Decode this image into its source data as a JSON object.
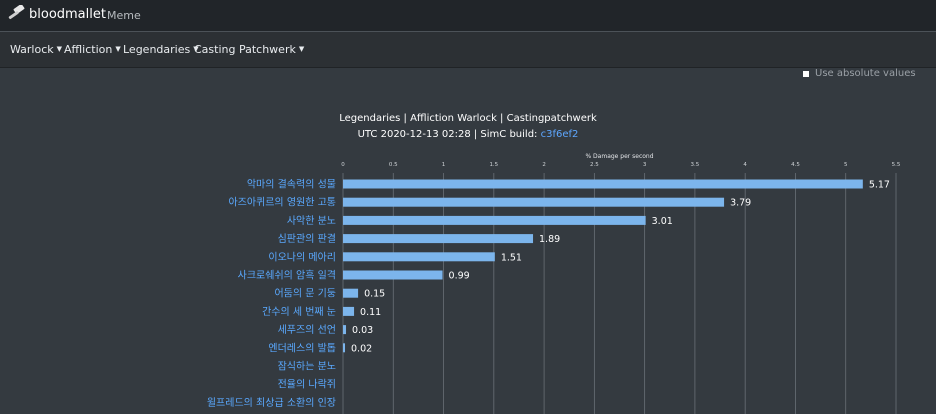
{
  "header": {
    "brand": "bloodmallet",
    "meme_link": "Meme",
    "logo_icon": "gavel-icon"
  },
  "nav": {
    "items": [
      {
        "label": "Warlock"
      },
      {
        "label": "Affliction"
      },
      {
        "label": "Legendaries"
      },
      {
        "label": "Casting Patchwerk"
      }
    ]
  },
  "controls": {
    "absolute_values_label": "Use absolute values",
    "absolute_values_checked": false
  },
  "chart_title": {
    "line1": "Legendaries | Affliction Warlock | Castingpatchwerk",
    "line2_prefix": "UTC 2020-12-13 02:28 | SimC build: ",
    "build_hash": "c3f6ef2"
  },
  "colors": {
    "bar": "#7cb5ec",
    "category_label": "#5aa9ff",
    "background": "#343a40",
    "link": "#5ea7ff"
  },
  "chart_data": {
    "type": "bar",
    "orientation": "horizontal",
    "xlabel": "% Damage per second",
    "xlim": [
      0,
      5.5
    ],
    "ticks": [
      0,
      0.5,
      1,
      1.5,
      2,
      2.5,
      3,
      3.5,
      4,
      4.5,
      5,
      5.5
    ],
    "grid": true,
    "categories": [
      "악마의 결속력의 성물",
      "아즈아퀴르의 영원한 고통",
      "사악한 분노",
      "심판관의 판결",
      "이오나의 메아리",
      "사크로쉐쉬의 암흑 일격",
      "어둠의 문 기둥",
      "간수의 세 번째 눈",
      "세푸즈의 선언",
      "엔더레스의 발톱",
      "잠식하는 분노",
      "전율의 나락쥐",
      "윌프레드의 최상급 소환의 인장"
    ],
    "values": [
      5.17,
      3.79,
      3.01,
      1.89,
      1.51,
      0.99,
      0.15,
      0.11,
      0.03,
      0.02,
      null,
      null,
      null
    ],
    "value_labels": [
      "5.17",
      "3.79",
      "3.01",
      "1.89",
      "1.51",
      "0.99",
      "0.15",
      "0.11",
      "0.03",
      "0.02",
      "",
      "",
      ""
    ]
  }
}
